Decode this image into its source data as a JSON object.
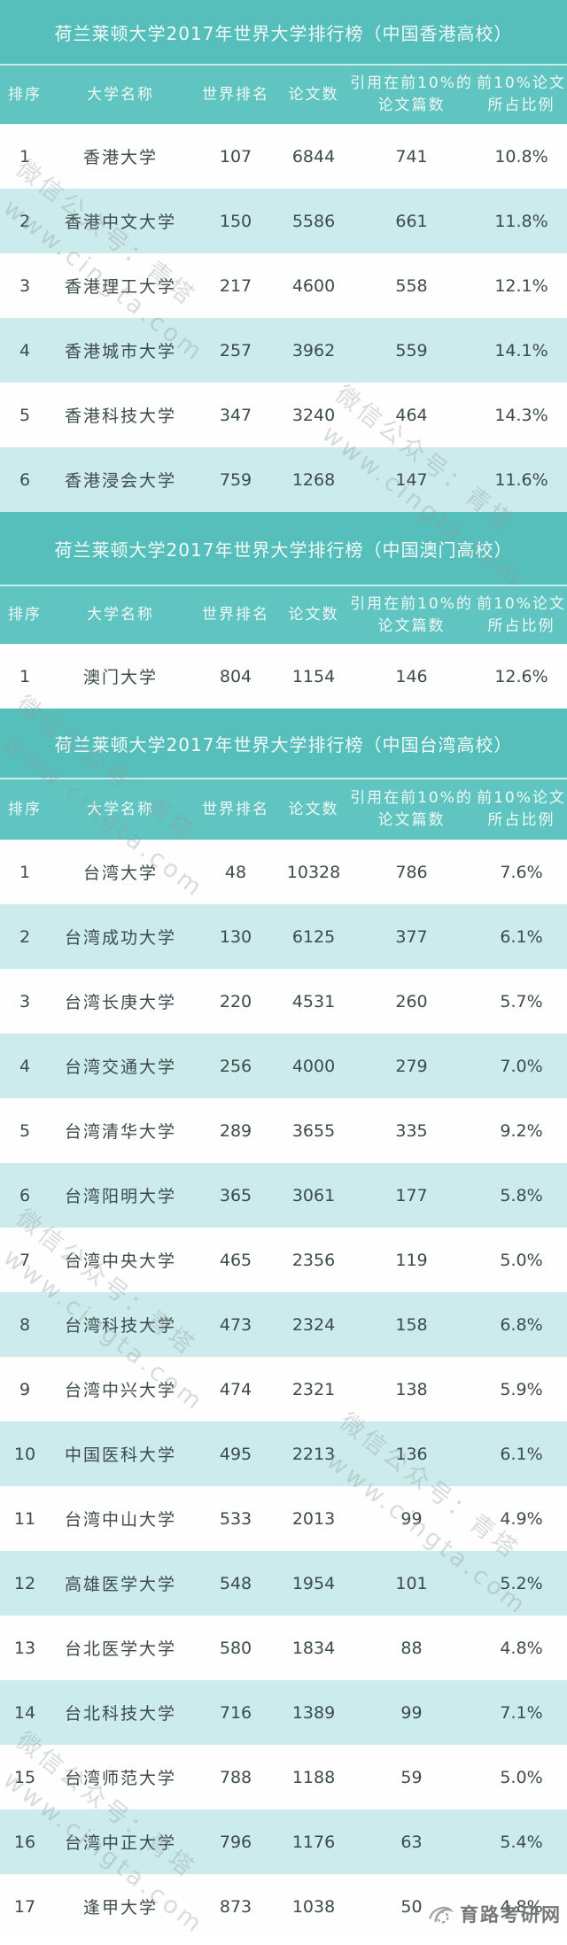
{
  "theme": {
    "title_band_teal": "#56bfbb",
    "header_teal": "#60c5c1",
    "alt_row_cyan": "#cbebec",
    "row_white": "#fefefe",
    "band_text": "#f2fbfa",
    "body_text": "#3d4b4d",
    "watermark_gray": "#96999c"
  },
  "tables": [
    {
      "title": "荷兰莱顿大学2017年世界大学排行榜（中国香港高校）",
      "headers": [
        "排序",
        "大学名称",
        "世界排名",
        "论文数",
        "引用在前10%的\n论文篇数",
        "前10%论文\n所占比例"
      ],
      "rows": [
        [
          "1",
          "香港大学",
          "107",
          "6844",
          "741",
          "10.8%"
        ],
        [
          "2",
          "香港中文大学",
          "150",
          "5586",
          "661",
          "11.8%"
        ],
        [
          "3",
          "香港理工大学",
          "217",
          "4600",
          "558",
          "12.1%"
        ],
        [
          "4",
          "香港城市大学",
          "257",
          "3962",
          "559",
          "14.1%"
        ],
        [
          "5",
          "香港科技大学",
          "347",
          "3240",
          "464",
          "14.3%"
        ],
        [
          "6",
          "香港浸会大学",
          "759",
          "1268",
          "147",
          "11.6%"
        ]
      ]
    },
    {
      "title": "荷兰莱顿大学2017年世界大学排行榜（中国澳门高校）",
      "headers": [
        "排序",
        "大学名称",
        "世界排名",
        "论文数",
        "引用在前10%的\n论文篇数",
        "前10%论文\n所占比例"
      ],
      "rows": [
        [
          "1",
          "澳门大学",
          "804",
          "1154",
          "146",
          "12.6%"
        ]
      ]
    },
    {
      "title": "荷兰莱顿大学2017年世界大学排行榜（中国台湾高校）",
      "headers": [
        "排序",
        "大学名称",
        "世界排名",
        "论文数",
        "引用在前10%的\n论文篇数",
        "前10%论文\n所占比例"
      ],
      "rows": [
        [
          "1",
          "台湾大学",
          "48",
          "10328",
          "786",
          "7.6%"
        ],
        [
          "2",
          "台湾成功大学",
          "130",
          "6125",
          "377",
          "6.1%"
        ],
        [
          "3",
          "台湾长庚大学",
          "220",
          "4531",
          "260",
          "5.7%"
        ],
        [
          "4",
          "台湾交通大学",
          "256",
          "4000",
          "279",
          "7.0%"
        ],
        [
          "5",
          "台湾清华大学",
          "289",
          "3655",
          "335",
          "9.2%"
        ],
        [
          "6",
          "台湾阳明大学",
          "365",
          "3061",
          "177",
          "5.8%"
        ],
        [
          "7",
          "台湾中央大学",
          "465",
          "2356",
          "119",
          "5.0%"
        ],
        [
          "8",
          "台湾科技大学",
          "473",
          "2324",
          "158",
          "6.8%"
        ],
        [
          "9",
          "台湾中兴大学",
          "474",
          "2321",
          "138",
          "5.9%"
        ],
        [
          "10",
          "中国医科大学",
          "495",
          "2213",
          "136",
          "6.1%"
        ],
        [
          "11",
          "台湾中山大学",
          "533",
          "2013",
          "99",
          "4.9%"
        ],
        [
          "12",
          "高雄医学大学",
          "548",
          "1954",
          "101",
          "5.2%"
        ],
        [
          "13",
          "台北医学大学",
          "580",
          "1834",
          "88",
          "4.8%"
        ],
        [
          "14",
          "台北科技大学",
          "716",
          "1389",
          "99",
          "7.1%"
        ],
        [
          "15",
          "台湾师范大学",
          "788",
          "1188",
          "59",
          "5.0%"
        ],
        [
          "16",
          "台湾中正大学",
          "796",
          "1176",
          "63",
          "5.4%"
        ],
        [
          "17",
          "逢甲大学",
          "873",
          "1038",
          "50",
          "4.8%"
        ]
      ]
    }
  ],
  "watermark": {
    "line1": "微信公众号：青塔",
    "line2": "www.cingta.com"
  },
  "footer": {
    "logo_text": "育路考研网"
  }
}
